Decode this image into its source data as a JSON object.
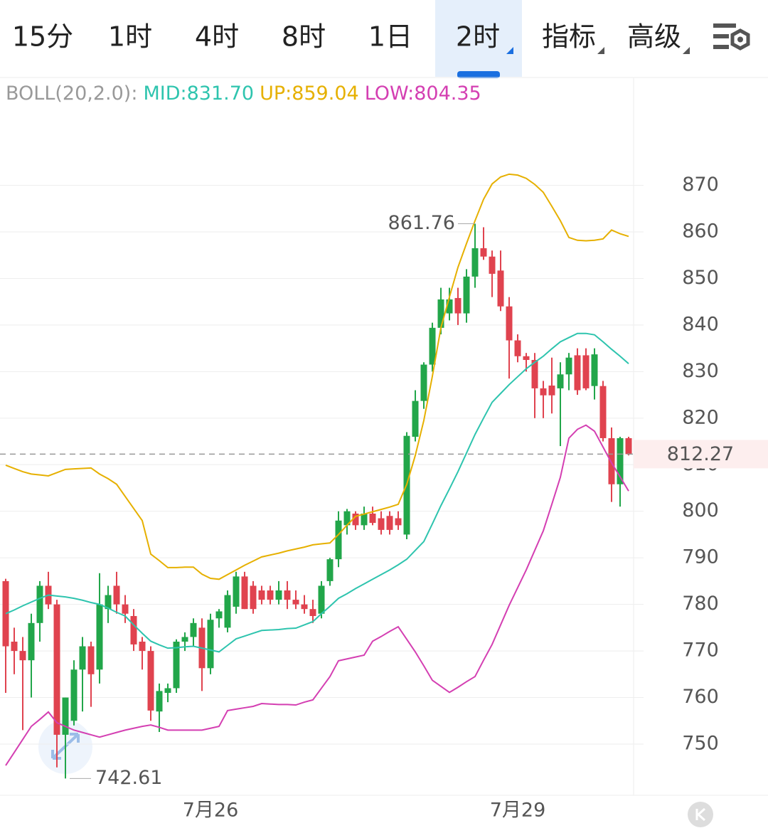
{
  "toolbar": {
    "tabs": [
      "15分",
      "1时",
      "4时",
      "8时",
      "1日",
      "2时",
      "指标",
      "高级"
    ],
    "active": 5
  },
  "chart_data": {
    "type": "candlestick",
    "indicator": "BOLL(20,2.0):",
    "categories": [
      null,
      null,
      null,
      null,
      null,
      null,
      null,
      null,
      null,
      null,
      null,
      null,
      null,
      null,
      null,
      null,
      null,
      null,
      null,
      null,
      null,
      null,
      null,
      null,
      "7月26",
      null,
      null,
      null,
      null,
      null,
      null,
      null,
      null,
      null,
      null,
      null,
      null,
      null,
      null,
      null,
      null,
      null,
      null,
      null,
      null,
      null,
      null,
      null,
      null,
      null,
      null,
      null,
      null,
      null,
      null,
      null,
      null,
      null,
      null,
      null,
      "7月29",
      null,
      null,
      null,
      null,
      null,
      null,
      null,
      null,
      null,
      null,
      null,
      null,
      null
    ],
    "open": [
      785,
      772,
      770,
      768,
      776,
      784,
      780,
      752,
      755,
      766,
      771,
      766,
      779,
      784,
      780,
      777.5,
      772,
      770,
      757,
      761,
      762,
      772,
      773,
      775,
      766.3,
      777,
      775,
      779.5,
      786,
      784,
      783,
      783,
      781,
      783,
      781,
      780,
      779,
      778,
      785,
      789.7,
      797,
      799.5,
      797,
      799.5,
      798.5,
      799,
      798.5,
      795,
      816,
      823.7,
      831.5,
      839.4,
      842.5,
      845.8,
      842.5,
      850.4,
      856.5,
      854.7,
      851.7,
      844,
      836.7,
      833.3,
      832.5,
      826.4,
      827,
      826.4,
      829.4,
      833.5,
      833.5,
      826.9,
      826.9,
      815.7,
      805.8,
      815.7
    ],
    "high": [
      785.5,
      775,
      773,
      778,
      785,
      787,
      781,
      760,
      768,
      773,
      772,
      786.7,
      784,
      787,
      782,
      779,
      773,
      771,
      763,
      763,
      772.5,
      774,
      777,
      777,
      778,
      779,
      783,
      787,
      787,
      785,
      784,
      784,
      785,
      785,
      783,
      782,
      781,
      785,
      790,
      800,
      800.5,
      800,
      801,
      801,
      800,
      800,
      800,
      817,
      826,
      832,
      840.5,
      848,
      848,
      848,
      852,
      861.76,
      861,
      856,
      856,
      846,
      838,
      834,
      834,
      828,
      833,
      832,
      834,
      835,
      835,
      835,
      828,
      818,
      816,
      816
    ],
    "low": [
      761,
      765,
      753,
      760,
      772,
      779,
      745,
      742.61,
      754,
      757,
      758,
      763,
      776,
      778,
      776,
      770,
      766,
      755,
      752.6,
      759,
      761,
      770,
      771,
      761.4,
      765,
      775,
      774,
      778,
      779,
      778,
      780,
      780,
      780,
      779,
      779,
      778,
      776,
      777,
      784,
      788,
      795,
      796,
      796,
      797,
      795,
      795,
      796,
      794,
      815,
      822,
      830,
      838,
      841,
      840,
      840.5,
      848,
      854,
      846,
      843,
      828.5,
      832,
      830,
      820,
      820,
      821,
      814,
      826,
      825,
      826,
      824,
      815,
      802,
      801,
      812
    ],
    "close": [
      771,
      770,
      768,
      776,
      784,
      780,
      752,
      760,
      766,
      771,
      765,
      780,
      782,
      780,
      778,
      771.4,
      770,
      757.2,
      761.4,
      762,
      772,
      773,
      776,
      766.3,
      776.7,
      778.5,
      782,
      786,
      779,
      779,
      781,
      781,
      783,
      781,
      780,
      779,
      777.5,
      784,
      789.7,
      798,
      800,
      797,
      799.5,
      797.5,
      796,
      796,
      797,
      816.2,
      823.7,
      831.5,
      839.4,
      845.5,
      845.5,
      842.5,
      850.4,
      856.5,
      854.7,
      851,
      844,
      836.7,
      833.3,
      832.5,
      826.4,
      824.9,
      824.9,
      829.4,
      833,
      826,
      826.4,
      833.7,
      815.7,
      805.8,
      815.7,
      812.27
    ],
    "up_color": "#e0434f",
    "down_color": "#22a64a",
    "series": [
      {
        "name": "UP:859.04",
        "color": "#e6b000",
        "values": [
          809.9,
          809.2,
          808.5,
          808,
          807.8,
          807.6,
          808.3,
          809,
          809.1,
          809.2,
          809.3,
          808,
          807,
          805.8,
          803.2,
          800.6,
          798,
          790.8,
          789.4,
          787.9,
          787.9,
          788,
          788,
          786.5,
          785.6,
          785.4,
          786.4,
          787.4,
          788.4,
          789.3,
          790.2,
          790.6,
          791,
          791.5,
          791.9,
          792.3,
          792.8,
          793,
          793.2,
          795,
          797,
          798.9,
          799.4,
          799.9,
          800.4,
          800.9,
          801.5,
          805.8,
          812,
          819.5,
          829,
          839.4,
          846,
          852.4,
          857.5,
          862.4,
          867,
          870.3,
          871.8,
          872.4,
          872.2,
          871.5,
          870.2,
          868.5,
          865.5,
          862.4,
          858.8,
          858.2,
          858.1,
          858.2,
          858.5,
          860.4,
          859.6,
          859.04
        ]
      },
      {
        "name": "MID:831.70",
        "color": "#2ec4ae",
        "values": [
          778,
          778.8,
          779.7,
          780.5,
          781.3,
          782,
          781.8,
          781.6,
          781.3,
          780.9,
          780.4,
          780,
          779.2,
          778.3,
          777.5,
          775.6,
          773.8,
          772.1,
          771.3,
          770.6,
          770.7,
          770.9,
          771,
          770.6,
          770.2,
          769.8,
          771.2,
          772.6,
          773.2,
          773.8,
          774.4,
          774.5,
          774.6,
          774.8,
          774.9,
          775.6,
          776.3,
          778,
          779.6,
          781.3,
          782.3,
          783.4,
          784.4,
          785.4,
          786.4,
          787.4,
          788.5,
          789.7,
          791.6,
          793.5,
          797.3,
          801.2,
          804.8,
          808.5,
          812.5,
          816.5,
          820,
          823.4,
          825.3,
          827.2,
          828.9,
          830.6,
          832,
          833.3,
          834.9,
          836.4,
          837.3,
          838.2,
          838.2,
          837.9,
          836.4,
          834.8,
          833.3,
          831.7
        ]
      },
      {
        "name": "LOW:804.35",
        "color": "#d43fb2",
        "values": [
          745.4,
          748.2,
          751,
          753.8,
          755.3,
          756.9,
          754.6,
          753.8,
          753,
          752.5,
          752,
          751.5,
          752,
          752.5,
          753,
          753.4,
          753.8,
          754.1,
          753.6,
          753,
          753,
          753,
          753,
          753,
          753.4,
          753.8,
          757.2,
          757.5,
          757.8,
          758.1,
          758.7,
          758.6,
          758.5,
          758.5,
          758.4,
          759,
          759.5,
          762,
          764.5,
          767.9,
          768.3,
          768.7,
          769.1,
          772.1,
          773.1,
          774.2,
          775.2,
          772.5,
          769.8,
          766.8,
          763.7,
          762.4,
          761.1,
          762.2,
          763.4,
          764.5,
          768,
          771.4,
          775.6,
          779.8,
          783.6,
          787.4,
          791.6,
          795.8,
          801.5,
          807.3,
          815.7,
          817.6,
          818.5,
          817.2,
          813.8,
          810.4,
          807.4,
          804.35
        ]
      }
    ],
    "legend_order": [
      1,
      0,
      2
    ],
    "high_label": "861.76",
    "low_label": "742.61",
    "last_price": 812.27,
    "ylim": [
      739,
      893
    ],
    "yticks": [
      750,
      760,
      770,
      780,
      790,
      800,
      810,
      820,
      830,
      840,
      850,
      860,
      870
    ],
    "grid": true
  }
}
